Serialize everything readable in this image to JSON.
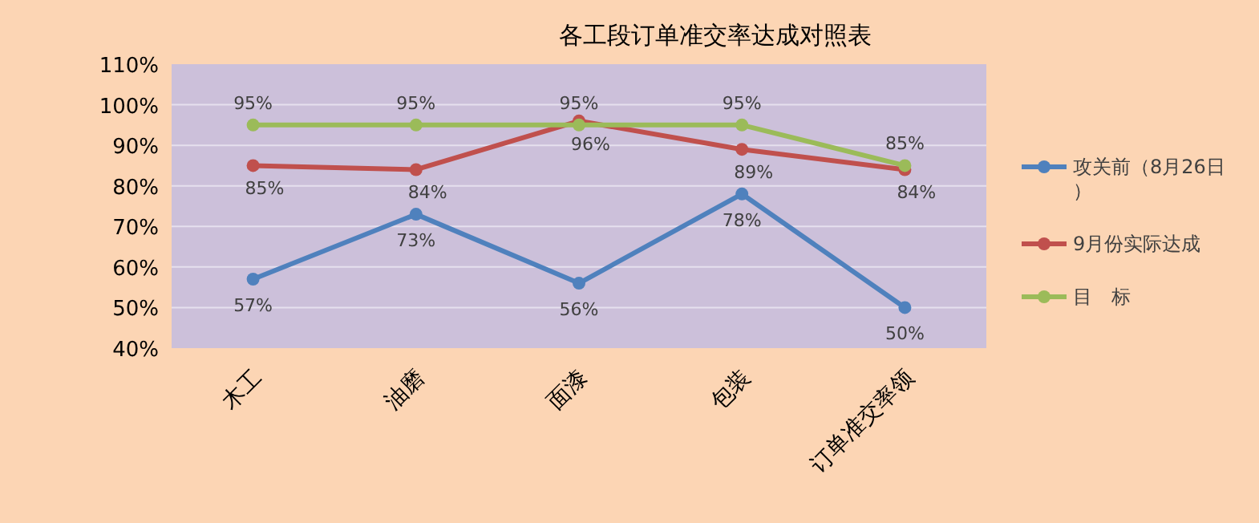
{
  "chart_data": {
    "type": "line",
    "title": "各工段订单准交率达成对照表",
    "categories": [
      "木工",
      "油磨",
      "面漆",
      "包装",
      "订单准交率领"
    ],
    "ylim": [
      40,
      110
    ],
    "yticks": [
      {
        "value": 40,
        "label": "40%"
      },
      {
        "value": 50,
        "label": "50%"
      },
      {
        "value": 60,
        "label": "60%"
      },
      {
        "value": 70,
        "label": "70%"
      },
      {
        "value": 80,
        "label": "80%"
      },
      {
        "value": 90,
        "label": "90%"
      },
      {
        "value": 100,
        "label": "100%"
      },
      {
        "value": 110,
        "label": "110%"
      }
    ],
    "grid": "y",
    "legend": "right",
    "marker": "circle",
    "line_style": "solid",
    "series": [
      {
        "name": "攻关前（8月26日）",
        "color": "#4f81bd",
        "values": [
          57,
          73,
          56,
          78,
          50
        ],
        "value_labels": [
          "57%",
          "73%",
          "56%",
          "78%",
          "50%"
        ]
      },
      {
        "name": "9月份实际达成",
        "color": "#c0504d",
        "values": [
          85,
          84,
          96,
          89,
          84
        ],
        "value_labels": [
          "85%",
          "84%",
          "96%",
          "89%",
          "84%"
        ]
      },
      {
        "name": "目　标",
        "color": "#9bbb59",
        "values": [
          95,
          95,
          95,
          95,
          85
        ],
        "value_labels": [
          "95%",
          "95%",
          "95%",
          "95%",
          "85%"
        ]
      }
    ]
  }
}
